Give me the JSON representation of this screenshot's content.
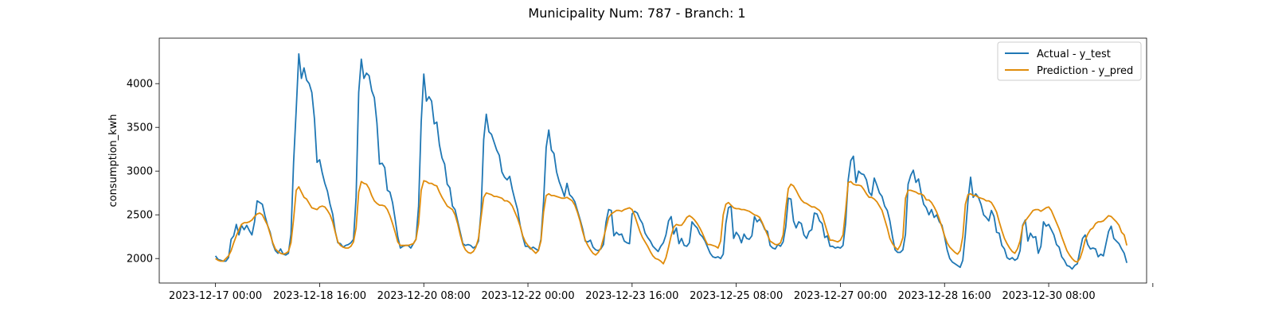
{
  "chart_data": {
    "type": "line",
    "title": "Municipality Num: 787 - Branch: 1",
    "xlabel": "",
    "ylabel": "consumption_kwh",
    "ylim": [
      1720,
      4520
    ],
    "xlim_hours": [
      -21.6,
      357.6
    ],
    "yticks": [
      2000,
      2500,
      3000,
      3500,
      4000
    ],
    "xticks": [
      {
        "label": "2023-12-17 00:00"
      },
      {
        "label": "2023-12-18 16:00"
      },
      {
        "label": "2023-12-20 08:00"
      },
      {
        "label": "2023-12-22 00:00"
      },
      {
        "label": "2023-12-23 16:00"
      },
      {
        "label": "2023-12-25 08:00"
      },
      {
        "label": "2023-12-27 00:00"
      },
      {
        "label": "2023-12-28 16:00"
      },
      {
        "label": "2023-12-30 08:00"
      },
      {
        "label": ""
      }
    ],
    "x_start": "2023-12-17 00:00",
    "x_step_hours": 1,
    "legend_position": "upper right",
    "grid": false,
    "series": [
      {
        "name": "Actual - y_test",
        "color": "#1f77b4",
        "values": [
          2030,
          1990,
          1980,
          1970,
          1970,
          2010,
          2220,
          2260,
          2390,
          2270,
          2380,
          2330,
          2380,
          2320,
          2270,
          2420,
          2660,
          2640,
          2620,
          2490,
          2380,
          2300,
          2170,
          2090,
          2060,
          2110,
          2050,
          2040,
          2060,
          2280,
          3100,
          3700,
          4340,
          4060,
          4180,
          4040,
          4000,
          3900,
          3600,
          3100,
          3130,
          2980,
          2860,
          2770,
          2620,
          2510,
          2310,
          2180,
          2170,
          2130,
          2150,
          2160,
          2180,
          2220,
          2700,
          3900,
          4280,
          4060,
          4120,
          4090,
          3920,
          3840,
          3550,
          3080,
          3090,
          3040,
          2780,
          2760,
          2640,
          2450,
          2250,
          2120,
          2140,
          2150,
          2150,
          2120,
          2170,
          2220,
          2600,
          3560,
          4110,
          3800,
          3850,
          3800,
          3540,
          3560,
          3300,
          3150,
          3080,
          2850,
          2810,
          2600,
          2560,
          2430,
          2300,
          2170,
          2150,
          2160,
          2150,
          2120,
          2140,
          2200,
          2540,
          3360,
          3650,
          3450,
          3420,
          3330,
          3240,
          3180,
          2990,
          2930,
          2900,
          2940,
          2790,
          2670,
          2560,
          2380,
          2250,
          2140,
          2140,
          2110,
          2130,
          2110,
          2090,
          2220,
          2650,
          3270,
          3470,
          3240,
          3200,
          2990,
          2880,
          2800,
          2710,
          2860,
          2730,
          2700,
          2650,
          2550,
          2450,
          2340,
          2200,
          2190,
          2210,
          2130,
          2100,
          2090,
          2110,
          2160,
          2420,
          2560,
          2550,
          2260,
          2300,
          2270,
          2280,
          2200,
          2180,
          2170,
          2510,
          2540,
          2520,
          2450,
          2400,
          2290,
          2240,
          2200,
          2140,
          2110,
          2080,
          2140,
          2180,
          2270,
          2430,
          2480,
          2280,
          2350,
          2170,
          2230,
          2150,
          2140,
          2180,
          2420,
          2380,
          2350,
          2280,
          2250,
          2200,
          2130,
          2060,
          2020,
          2010,
          2020,
          2000,
          2050,
          2400,
          2580,
          2600,
          2230,
          2300,
          2260,
          2180,
          2280,
          2230,
          2220,
          2260,
          2480,
          2420,
          2450,
          2400,
          2330,
          2310,
          2150,
          2120,
          2110,
          2160,
          2140,
          2190,
          2360,
          2690,
          2680,
          2430,
          2350,
          2420,
          2400,
          2270,
          2230,
          2310,
          2330,
          2520,
          2510,
          2430,
          2400,
          2240,
          2260,
          2140,
          2140,
          2120,
          2130,
          2120,
          2150,
          2400,
          2900,
          3120,
          3170,
          2870,
          3000,
          2970,
          2960,
          2900,
          2760,
          2720,
          2920,
          2840,
          2750,
          2710,
          2600,
          2550,
          2430,
          2250,
          2100,
          2070,
          2070,
          2100,
          2280,
          2850,
          2950,
          3010,
          2870,
          2910,
          2750,
          2620,
          2580,
          2500,
          2560,
          2470,
          2500,
          2420,
          2380,
          2250,
          2100,
          2000,
          1960,
          1940,
          1920,
          1900,
          1980,
          2280,
          2660,
          2930,
          2700,
          2740,
          2700,
          2620,
          2500,
          2470,
          2430,
          2550,
          2480,
          2300,
          2290,
          2150,
          2110,
          2010,
          1990,
          2010,
          1980,
          2000,
          2090,
          2380,
          2440,
          2200,
          2290,
          2240,
          2250,
          2060,
          2140,
          2420,
          2370,
          2390,
          2330,
          2270,
          2160,
          2130,
          2020,
          1980,
          1920,
          1910,
          1880,
          1920,
          1940,
          2090,
          2230,
          2270,
          2160,
          2110,
          2120,
          2110,
          2020,
          2050,
          2030,
          2170,
          2310,
          2370,
          2230,
          2200,
          2170,
          2110,
          2060,
          1950
        ]
      },
      {
        "name": "Prediction - y_pred",
        "color": "#e08c0b",
        "values": [
          2000,
          1980,
          1970,
          1970,
          2000,
          2030,
          2090,
          2180,
          2260,
          2330,
          2390,
          2410,
          2410,
          2420,
          2440,
          2480,
          2510,
          2520,
          2500,
          2440,
          2380,
          2280,
          2180,
          2110,
          2080,
          2060,
          2050,
          2060,
          2080,
          2180,
          2450,
          2780,
          2820,
          2760,
          2700,
          2680,
          2630,
          2580,
          2570,
          2560,
          2590,
          2600,
          2590,
          2550,
          2500,
          2420,
          2300,
          2190,
          2150,
          2130,
          2120,
          2120,
          2140,
          2190,
          2350,
          2760,
          2880,
          2860,
          2850,
          2800,
          2720,
          2660,
          2630,
          2610,
          2610,
          2600,
          2560,
          2490,
          2400,
          2300,
          2190,
          2150,
          2150,
          2150,
          2150,
          2160,
          2170,
          2220,
          2400,
          2780,
          2890,
          2880,
          2860,
          2860,
          2840,
          2830,
          2760,
          2700,
          2650,
          2600,
          2580,
          2560,
          2500,
          2400,
          2270,
          2160,
          2100,
          2070,
          2060,
          2080,
          2130,
          2230,
          2470,
          2700,
          2750,
          2740,
          2730,
          2710,
          2710,
          2700,
          2690,
          2660,
          2660,
          2640,
          2600,
          2530,
          2460,
          2370,
          2260,
          2190,
          2150,
          2120,
          2090,
          2060,
          2090,
          2200,
          2530,
          2720,
          2740,
          2720,
          2720,
          2710,
          2700,
          2690,
          2690,
          2700,
          2680,
          2660,
          2610,
          2530,
          2430,
          2310,
          2210,
          2150,
          2100,
          2060,
          2040,
          2070,
          2120,
          2230,
          2350,
          2470,
          2510,
          2530,
          2550,
          2550,
          2540,
          2560,
          2570,
          2580,
          2560,
          2490,
          2400,
          2310,
          2240,
          2190,
          2140,
          2080,
          2030,
          2000,
          1990,
          1970,
          1940,
          2010,
          2130,
          2260,
          2360,
          2390,
          2380,
          2380,
          2420,
          2470,
          2490,
          2470,
          2440,
          2400,
          2350,
          2290,
          2220,
          2160,
          2160,
          2150,
          2140,
          2120,
          2200,
          2500,
          2620,
          2640,
          2610,
          2580,
          2570,
          2570,
          2560,
          2560,
          2550,
          2540,
          2520,
          2500,
          2490,
          2470,
          2410,
          2340,
          2270,
          2200,
          2180,
          2160,
          2160,
          2180,
          2270,
          2570,
          2800,
          2850,
          2830,
          2780,
          2720,
          2670,
          2640,
          2630,
          2610,
          2590,
          2590,
          2570,
          2550,
          2500,
          2400,
          2300,
          2210,
          2210,
          2200,
          2190,
          2210,
          2270,
          2550,
          2870,
          2880,
          2850,
          2840,
          2840,
          2830,
          2790,
          2740,
          2700,
          2700,
          2680,
          2650,
          2600,
          2550,
          2450,
          2350,
          2230,
          2170,
          2130,
          2100,
          2150,
          2240,
          2690,
          2780,
          2780,
          2770,
          2760,
          2740,
          2740,
          2720,
          2670,
          2670,
          2640,
          2590,
          2530,
          2450,
          2360,
          2260,
          2180,
          2130,
          2100,
          2070,
          2050,
          2090,
          2250,
          2620,
          2730,
          2740,
          2720,
          2720,
          2700,
          2690,
          2680,
          2660,
          2660,
          2640,
          2590,
          2530,
          2420,
          2320,
          2230,
          2170,
          2120,
          2080,
          2060,
          2110,
          2200,
          2370,
          2430,
          2470,
          2510,
          2550,
          2560,
          2560,
          2540,
          2560,
          2580,
          2590,
          2550,
          2480,
          2410,
          2340,
          2250,
          2170,
          2090,
          2040,
          2000,
          1970,
          1960,
          2000,
          2090,
          2210,
          2280,
          2330,
          2350,
          2400,
          2420,
          2420,
          2430,
          2460,
          2490,
          2480,
          2450,
          2420,
          2380,
          2300,
          2270,
          2150
        ]
      }
    ]
  }
}
